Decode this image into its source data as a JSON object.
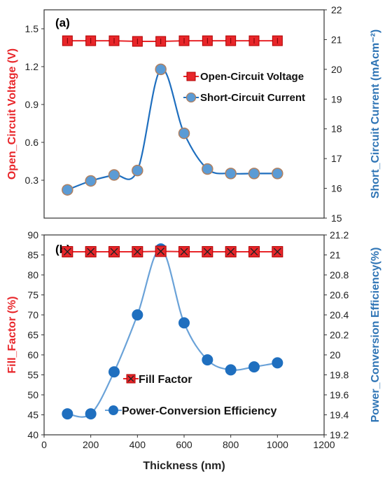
{
  "colors": {
    "red": "#e8262a",
    "blue": "#2e74b5",
    "marker_blue": "#5b9bd5",
    "line_blue": "#1f6fbf",
    "dark_red": "#b00000"
  },
  "chart_data": [
    {
      "type": "line",
      "panel_label": "(a)",
      "x": [
        100,
        200,
        300,
        400,
        500,
        600,
        700,
        800,
        900,
        1000
      ],
      "xlim": [
        0,
        1200
      ],
      "ylabel_left": "Open_Circuit Voltage (V)",
      "ylabel_right": "Short_Circuit Current (mAcm⁻²)",
      "ylim_left": [
        0,
        1.65
      ],
      "yticks_left": [
        "0.3",
        "0.6",
        "0.9",
        "1.2",
        "1.5"
      ],
      "yticks_left_values": [
        0.3,
        0.6,
        0.9,
        1.2,
        1.5
      ],
      "ylim_right": [
        15,
        22
      ],
      "yticks_right": [
        "15",
        "16",
        "17",
        "18",
        "19",
        "20",
        "21",
        "22"
      ],
      "legend_position": "middle-right",
      "series": [
        {
          "name": "Open-Circuit Voltage",
          "axis": "left",
          "marker": "square",
          "values": [
            1.405,
            1.405,
            1.405,
            1.4,
            1.4,
            1.405,
            1.405,
            1.405,
            1.405,
            1.405
          ]
        },
        {
          "name": "Short-Circuit Current",
          "axis": "right",
          "marker": "circle",
          "values": [
            15.95,
            16.25,
            16.45,
            16.6,
            20.0,
            17.85,
            16.65,
            16.5,
            16.5,
            16.5
          ]
        }
      ]
    },
    {
      "type": "line",
      "panel_label": "(b)",
      "x": [
        100,
        200,
        300,
        400,
        500,
        600,
        700,
        800,
        900,
        1000
      ],
      "xlim": [
        0,
        1200
      ],
      "xticks": [
        "0",
        "200",
        "400",
        "600",
        "800",
        "1000",
        "1200"
      ],
      "xlabel": "Thickness (nm)",
      "ylabel_left": "Fill_Factor (%)",
      "ylabel_right": "Power_Conversion Efficiency(%)",
      "ylim_left": [
        40,
        90
      ],
      "yticks_left": [
        "40",
        "45",
        "50",
        "55",
        "60",
        "65",
        "70",
        "75",
        "80",
        "85",
        "90"
      ],
      "ylim_right": [
        19.2,
        21.2
      ],
      "yticks_right": [
        "19.2",
        "19.4",
        "19.6",
        "19.8",
        "20",
        "20.2",
        "20.4",
        "20.6",
        "20.8",
        "21",
        "21.2"
      ],
      "legend_position": "bottom-center",
      "series": [
        {
          "name": "Fill Factor",
          "axis": "left",
          "marker": "square-x",
          "values": [
            85.8,
            85.8,
            85.8,
            85.8,
            85.9,
            85.8,
            85.8,
            85.8,
            85.8,
            85.8
          ]
        },
        {
          "name": "Power-Conversion Efficiency",
          "axis": "right",
          "marker": "circle",
          "values": [
            19.41,
            19.41,
            19.83,
            20.4,
            21.06,
            20.32,
            19.95,
            19.85,
            19.88,
            19.92
          ]
        }
      ]
    }
  ]
}
